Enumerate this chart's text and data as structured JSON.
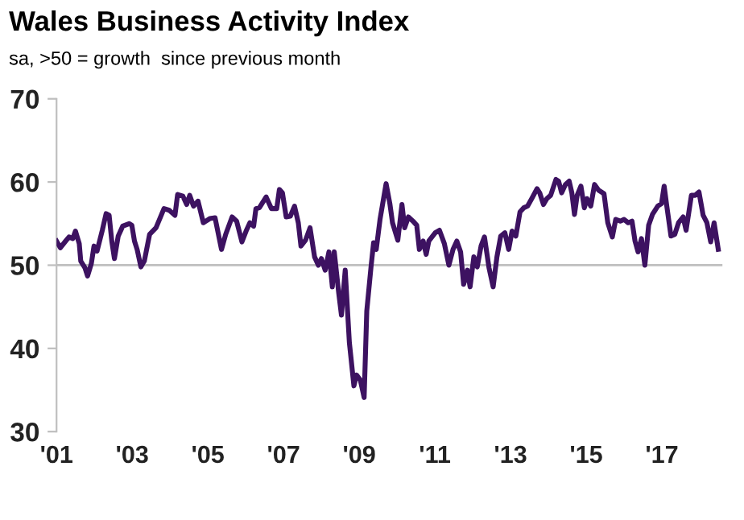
{
  "chart_data": {
    "type": "line",
    "title": "Wales Business Activity Index",
    "subtitle": "sa, >50 = growth  since previous month",
    "x": [
      2001.0,
      2001.1,
      2001.24,
      2001.33,
      2001.43,
      2001.5,
      2001.6,
      2001.64,
      2001.75,
      2001.82,
      2001.92,
      2001.99,
      2002.07,
      2002.21,
      2002.31,
      2002.39,
      2002.46,
      2002.53,
      2002.63,
      2002.75,
      2002.92,
      2002.99,
      2003.06,
      2003.13,
      2003.23,
      2003.32,
      2003.46,
      2003.63,
      2003.84,
      2003.98,
      2004.13,
      2004.2,
      2004.34,
      2004.44,
      2004.52,
      2004.62,
      2004.74,
      2004.88,
      2005.05,
      2005.19,
      2005.36,
      2005.47,
      2005.64,
      2005.76,
      2005.9,
      2006.01,
      2006.11,
      2006.21,
      2006.27,
      2006.36,
      2006.54,
      2006.68,
      2006.82,
      2006.89,
      2006.97,
      2007.07,
      2007.18,
      2007.29,
      2007.39,
      2007.46,
      2007.58,
      2007.7,
      2007.82,
      2007.92,
      2008.0,
      2008.1,
      2008.2,
      2008.29,
      2008.34,
      2008.46,
      2008.53,
      2008.63,
      2008.74,
      2008.86,
      2008.93,
      2009.03,
      2009.13,
      2009.2,
      2009.31,
      2009.38,
      2009.45,
      2009.55,
      2009.71,
      2009.81,
      2009.88,
      2010.02,
      2010.13,
      2010.2,
      2010.3,
      2010.42,
      2010.52,
      2010.59,
      2010.69,
      2010.77,
      2010.84,
      2011.01,
      2011.12,
      2011.25,
      2011.37,
      2011.48,
      2011.58,
      2011.68,
      2011.76,
      2011.86,
      2011.93,
      2012.03,
      2012.12,
      2012.22,
      2012.31,
      2012.43,
      2012.54,
      2012.64,
      2012.74,
      2012.85,
      2012.95,
      2013.04,
      2013.14,
      2013.25,
      2013.35,
      2013.45,
      2013.56,
      2013.7,
      2013.77,
      2013.87,
      2013.96,
      2014.06,
      2014.2,
      2014.27,
      2014.35,
      2014.45,
      2014.55,
      2014.62,
      2014.69,
      2014.76,
      2014.86,
      2014.95,
      2015.02,
      2015.12,
      2015.22,
      2015.33,
      2015.47,
      2015.57,
      2015.69,
      2015.78,
      2015.9,
      2016.0,
      2016.11,
      2016.21,
      2016.29,
      2016.37,
      2016.46,
      2016.55,
      2016.65,
      2016.75,
      2016.89,
      2016.99,
      2017.06,
      2017.13,
      2017.24,
      2017.34,
      2017.44,
      2017.56,
      2017.64,
      2017.78,
      2017.88,
      2017.98,
      2018.09,
      2018.19,
      2018.29,
      2018.38,
      2018.49
    ],
    "series": [
      {
        "color": "#3d1261",
        "values": [
          52.9,
          52.1,
          52.9,
          53.4,
          53.2,
          54.1,
          52.6,
          50.5,
          49.7,
          48.7,
          50.2,
          52.3,
          51.7,
          54.2,
          56.2,
          56.0,
          52.9,
          50.8,
          53.5,
          54.7,
          55.0,
          54.8,
          52.9,
          51.9,
          49.8,
          50.5,
          53.7,
          54.5,
          56.8,
          56.6,
          56.0,
          58.5,
          58.3,
          57.3,
          58.4,
          57.1,
          57.7,
          55.1,
          55.6,
          55.7,
          51.9,
          53.7,
          55.8,
          55.3,
          52.8,
          54.1,
          55.1,
          54.7,
          56.8,
          56.9,
          58.2,
          56.8,
          56.8,
          59.1,
          58.7,
          55.8,
          55.9,
          57.1,
          55.1,
          52.3,
          53.0,
          54.5,
          51.0,
          50.0,
          50.8,
          49.4,
          51.6,
          47.4,
          51.6,
          46.6,
          44.0,
          49.4,
          40.7,
          35.5,
          36.8,
          36.2,
          34.1,
          44.5,
          49.7,
          52.7,
          51.9,
          55.5,
          59.8,
          57.4,
          55.1,
          53.0,
          57.3,
          54.5,
          55.8,
          55.3,
          54.8,
          51.9,
          52.9,
          51.3,
          52.9,
          53.9,
          54.2,
          52.6,
          50.0,
          51.9,
          52.9,
          51.6,
          47.7,
          49.4,
          47.4,
          51.0,
          49.8,
          52.3,
          53.4,
          49.7,
          47.4,
          51.0,
          53.5,
          53.9,
          51.9,
          54.1,
          53.5,
          56.4,
          56.9,
          57.1,
          58.0,
          59.2,
          58.7,
          57.3,
          58.0,
          58.4,
          60.3,
          60.1,
          58.7,
          59.7,
          60.1,
          58.7,
          56.1,
          58.4,
          59.5,
          56.9,
          58.0,
          57.1,
          59.7,
          59.0,
          58.6,
          55.1,
          53.4,
          55.5,
          55.3,
          55.5,
          55.1,
          55.3,
          52.9,
          51.6,
          53.2,
          50.0,
          54.8,
          56.1,
          57.1,
          57.4,
          59.5,
          57.1,
          53.5,
          53.7,
          55.1,
          55.8,
          54.2,
          58.4,
          58.4,
          58.8,
          56.0,
          55.1,
          52.8,
          55.1,
          51.9
        ]
      }
    ],
    "xlim": [
      2001,
      2018.6
    ],
    "xticks": [
      {
        "value": 2001,
        "label": "'01"
      },
      {
        "value": 2003,
        "label": "'03"
      },
      {
        "value": 2005,
        "label": "'05"
      },
      {
        "value": 2007,
        "label": "'07"
      },
      {
        "value": 2009,
        "label": "'09"
      },
      {
        "value": 2011,
        "label": "'11"
      },
      {
        "value": 2013,
        "label": "'13"
      },
      {
        "value": 2015,
        "label": "'15"
      },
      {
        "value": 2017,
        "label": "'17"
      }
    ],
    "ylim": [
      30,
      70
    ],
    "yticks": [
      30,
      40,
      50,
      60,
      70
    ],
    "ref_lines": [
      {
        "axis": "y",
        "value": 50,
        "color": "#bfbfbf"
      }
    ],
    "grid": false,
    "legend": false,
    "marker": "none",
    "line_style": "solid"
  }
}
